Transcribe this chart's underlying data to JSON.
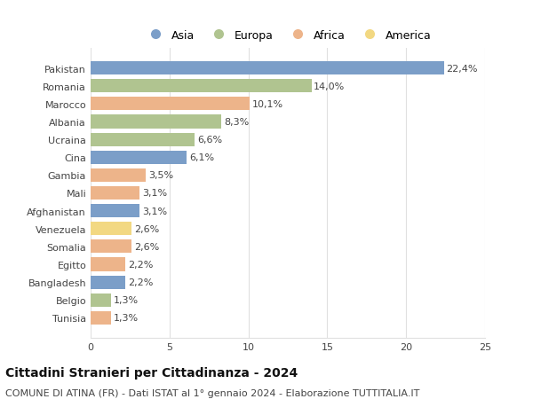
{
  "categories": [
    "Pakistan",
    "Romania",
    "Marocco",
    "Albania",
    "Ucraina",
    "Cina",
    "Gambia",
    "Mali",
    "Afghanistan",
    "Venezuela",
    "Somalia",
    "Egitto",
    "Bangladesh",
    "Belgio",
    "Tunisia"
  ],
  "values": [
    22.4,
    14.0,
    10.1,
    8.3,
    6.6,
    6.1,
    3.5,
    3.1,
    3.1,
    2.6,
    2.6,
    2.2,
    2.2,
    1.3,
    1.3
  ],
  "labels": [
    "22,4%",
    "14,0%",
    "10,1%",
    "8,3%",
    "6,6%",
    "6,1%",
    "3,5%",
    "3,1%",
    "3,1%",
    "2,6%",
    "2,6%",
    "2,2%",
    "2,2%",
    "1,3%",
    "1,3%"
  ],
  "continents": [
    "Asia",
    "Europa",
    "Africa",
    "Europa",
    "Europa",
    "Asia",
    "Africa",
    "Africa",
    "Asia",
    "America",
    "Africa",
    "Africa",
    "Asia",
    "Europa",
    "Africa"
  ],
  "continent_colors": {
    "Asia": "#7b9ec8",
    "Europa": "#b0c490",
    "Africa": "#edb48a",
    "America": "#f2d882"
  },
  "legend_order": [
    "Asia",
    "Europa",
    "Africa",
    "America"
  ],
  "title": "Cittadini Stranieri per Cittadinanza - 2024",
  "subtitle": "COMUNE DI ATINA (FR) - Dati ISTAT al 1° gennaio 2024 - Elaborazione TUTTITALIA.IT",
  "xlim": [
    0,
    25
  ],
  "xticks": [
    0,
    5,
    10,
    15,
    20,
    25
  ],
  "background_color": "#ffffff",
  "grid_color": "#e0e0e0",
  "title_fontsize": 10,
  "subtitle_fontsize": 8,
  "label_fontsize": 8,
  "tick_fontsize": 8
}
